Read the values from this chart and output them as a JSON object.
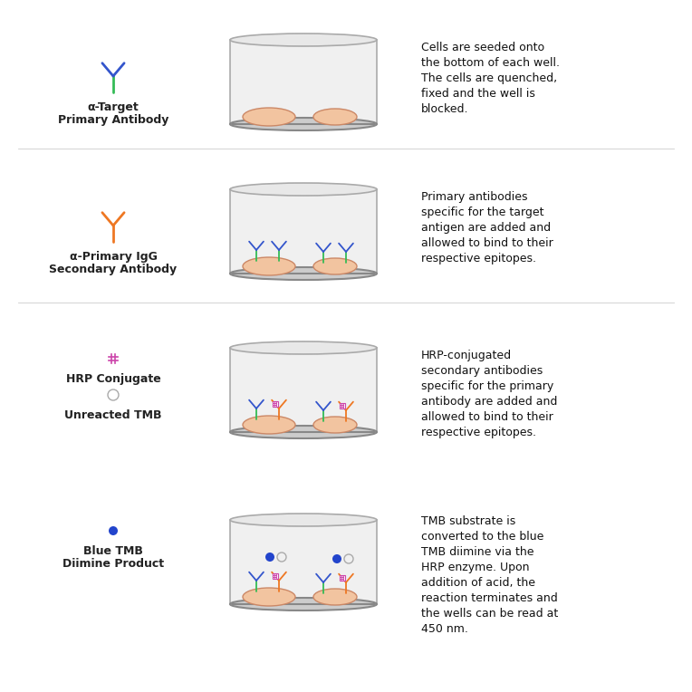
{
  "background_color": "#ffffff",
  "rows": [
    {
      "legend_label1": "α-Target",
      "legend_label2": "Primary Antibody",
      "description": "Cells are seeded onto\nthe bottom of each well.\nThe cells are quenched,\nfixed and the well is\nblocked.",
      "well_content": "cells_only"
    },
    {
      "legend_label1": "α-Primary IgG",
      "legend_label2": "Secondary Antibody",
      "description": "Primary antibodies\nspecific for the target\nantigen are added and\nallowed to bind to their\nrespective epitopes.",
      "well_content": "primary_antibody"
    },
    {
      "legend_label1": "HRP Conjugate",
      "legend_label2": "",
      "legend_extra": "Unreacted TMB",
      "description": "HRP-conjugated\nsecondary antibodies\nspecific for the primary\nantibody are added and\nallowed to bind to their\nrespective epitopes.",
      "well_content": "secondary_antibody"
    },
    {
      "legend_label1": "Blue TMB",
      "legend_label2": "Diimine Product",
      "description": "TMB substrate is\nconverted to the blue\nTMB diimine via the\nHRP enzyme. Upon\naddition of acid, the\nreaction terminates and\nthe wells can be read at\n450 nm.",
      "well_content": "tmb_product"
    }
  ],
  "antibody_green": "#33bb55",
  "antibody_blue": "#3355cc",
  "antibody_orange": "#ee7722",
  "hrp_color": "#cc44aa",
  "tmb_blue": "#2244cc",
  "cell_color": "#f2c4a0",
  "cell_outline": "#cc8866"
}
